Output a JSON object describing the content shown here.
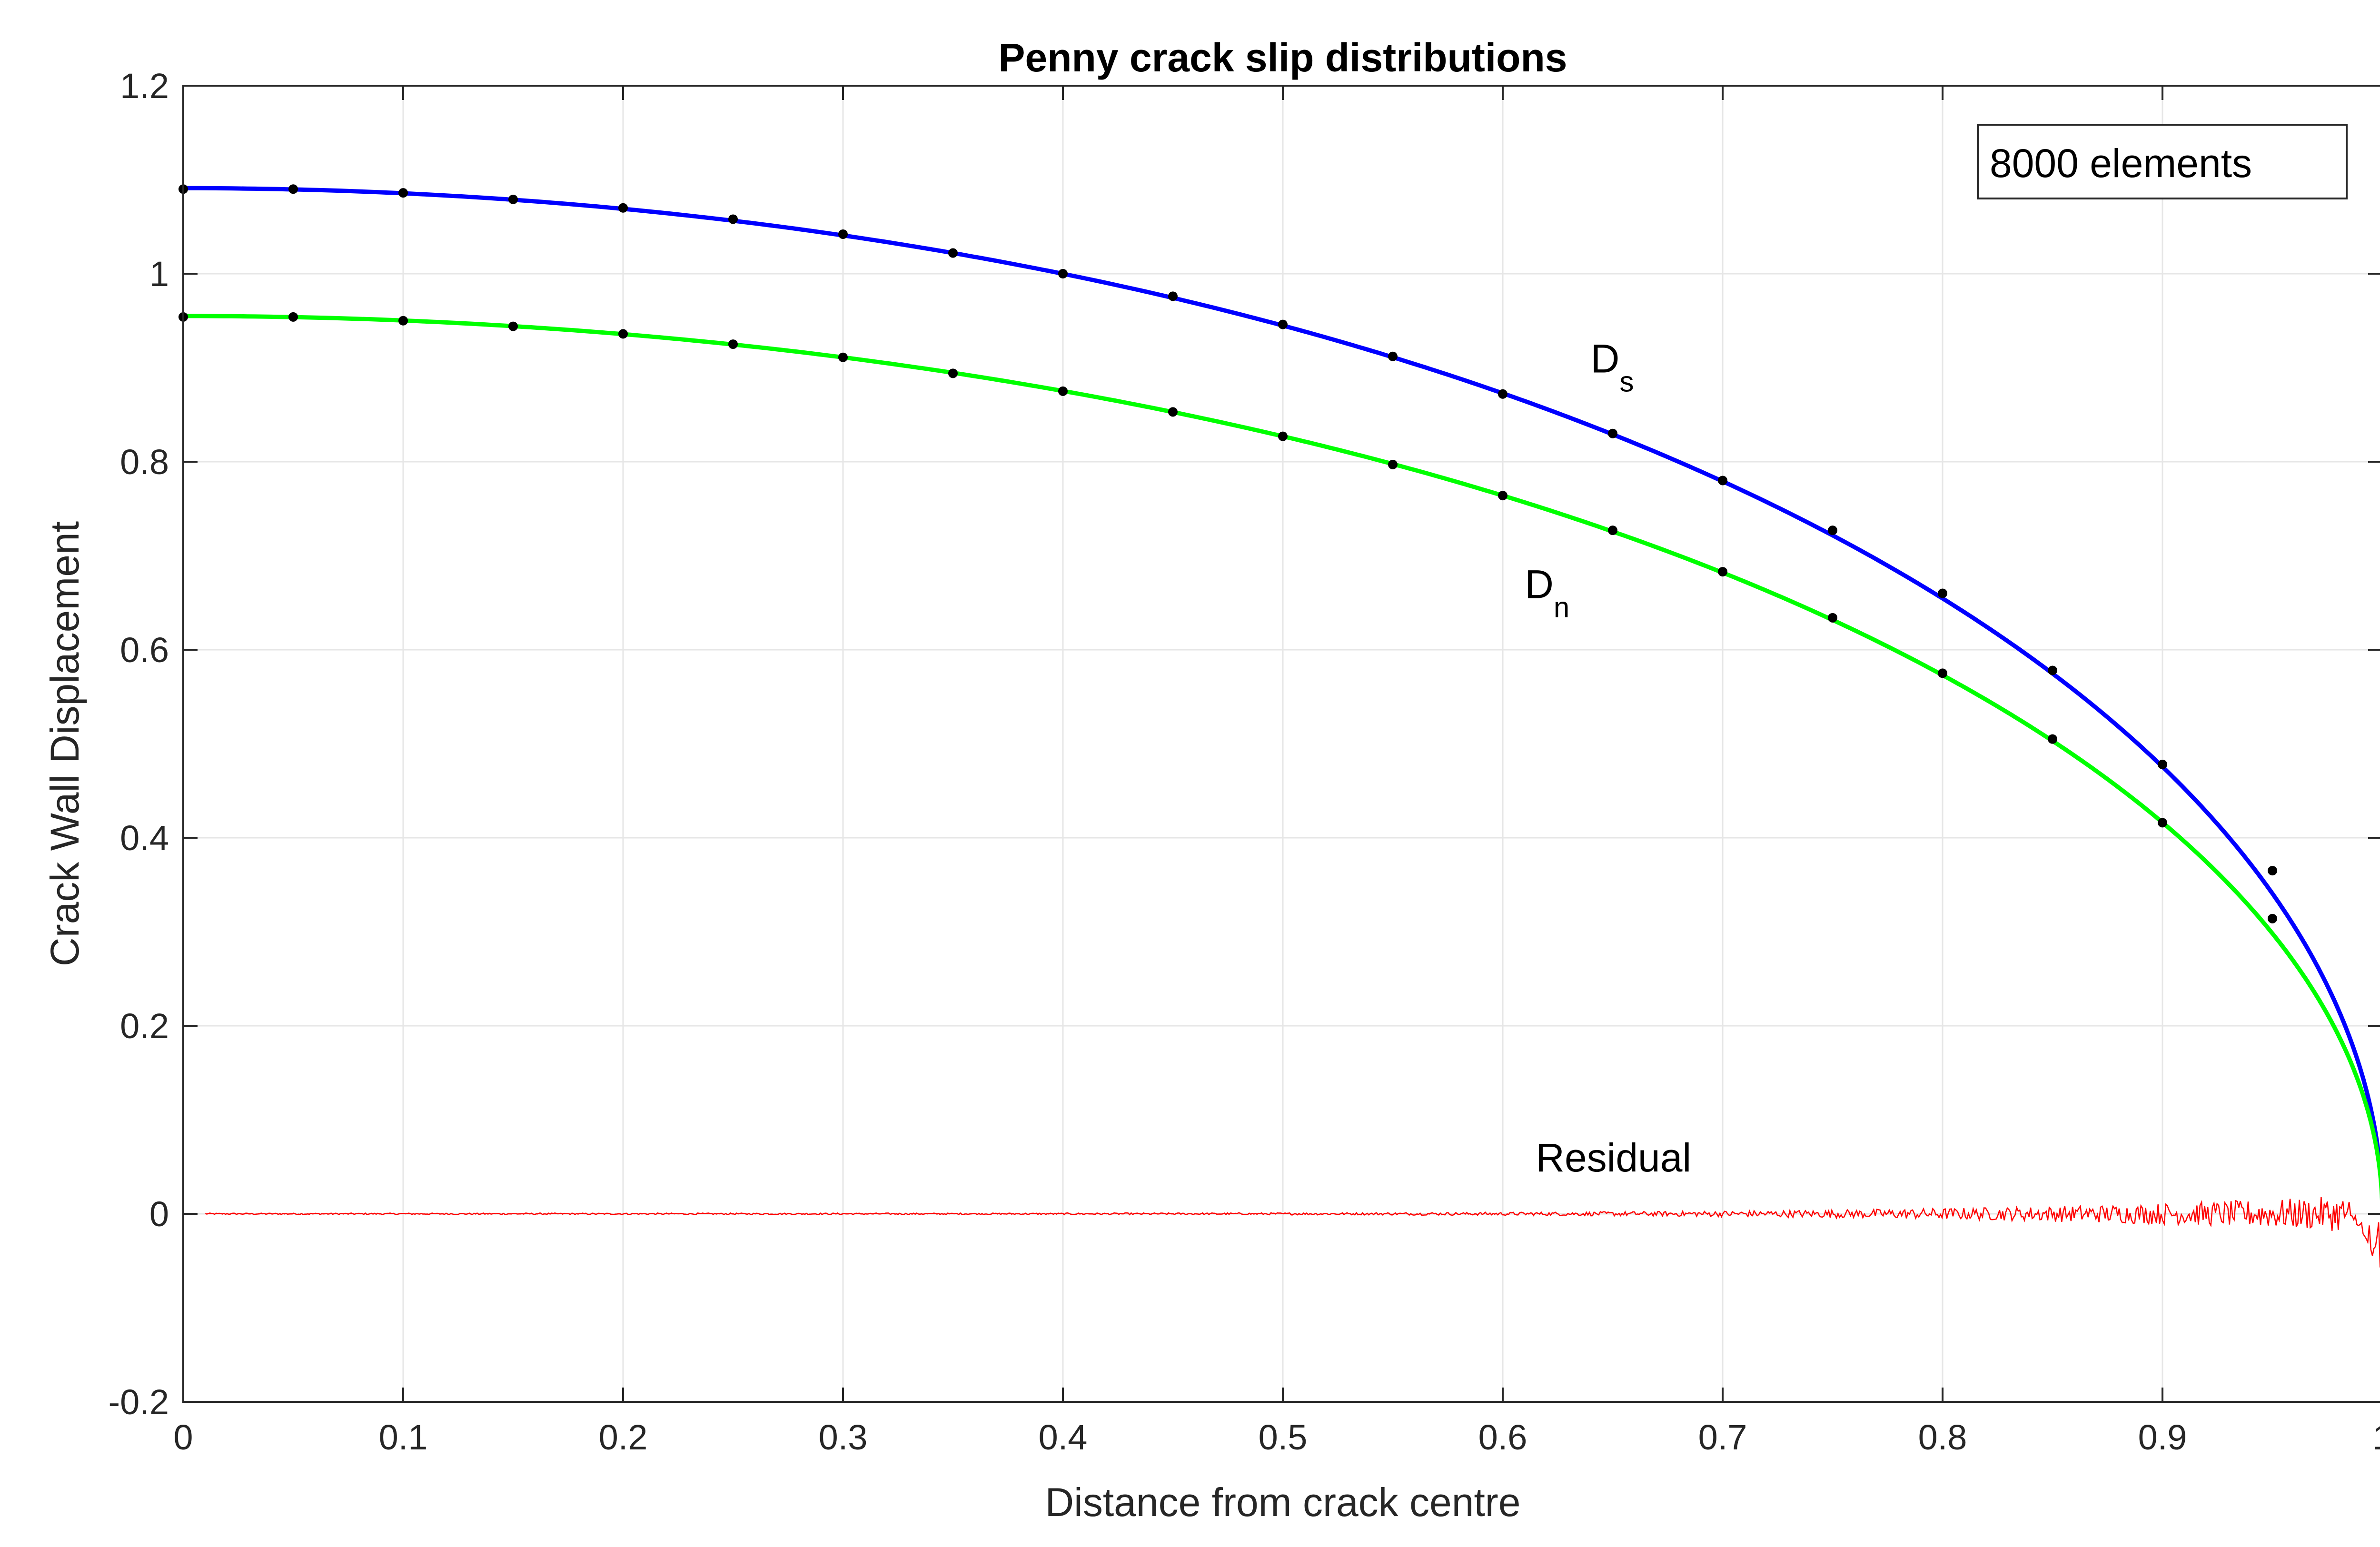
{
  "chart_data": {
    "type": "line",
    "title": "Penny crack slip distributions",
    "xlabel": "Distance from crack centre",
    "ylabel": "Crack Wall Displacement",
    "xlim": [
      0,
      1
    ],
    "ylim": [
      -0.2,
      1.2
    ],
    "grid": true,
    "xticks": [
      0,
      0.1,
      0.2,
      0.3,
      0.4,
      0.5,
      0.6,
      0.7,
      0.8,
      0.9,
      1
    ],
    "xtick_labels": [
      "0",
      "0.1",
      "0.2",
      "0.3",
      "0.4",
      "0.5",
      "0.6",
      "0.7",
      "0.8",
      "0.9",
      "1"
    ],
    "yticks": [
      -0.2,
      0,
      0.2,
      0.4,
      0.6,
      0.8,
      1,
      1.2
    ],
    "ytick_labels": [
      "-0.2",
      "0",
      "0.2",
      "0.4",
      "0.6",
      "0.8",
      "1",
      "1.2"
    ],
    "legend_text": "8000 elements",
    "legend_position": "top-right",
    "series": [
      {
        "name": "Ds",
        "label_main": "D",
        "label_sub": "s",
        "kind": "analytic-line",
        "color": "#0000ff",
        "amplitude": 1.091,
        "label_at": {
          "x": 0.64,
          "y": 0.895
        },
        "points_x": [
          0,
          0.05,
          0.1,
          0.15,
          0.2,
          0.25,
          0.3,
          0.35,
          0.4,
          0.45,
          0.5,
          0.55,
          0.6,
          0.65,
          0.7,
          0.75,
          0.8,
          0.85,
          0.9,
          0.95
        ],
        "points_y": [
          1.09,
          1.09,
          1.086,
          1.079,
          1.07,
          1.058,
          1.042,
          1.022,
          1.0,
          0.976,
          0.946,
          0.912,
          0.872,
          0.83,
          0.78,
          0.727,
          0.66,
          0.578,
          0.478,
          0.365
        ]
      },
      {
        "name": "Dn",
        "label_main": "D",
        "label_sub": "n",
        "kind": "analytic-line",
        "color": "#00ff00",
        "amplitude": 0.955,
        "label_at": {
          "x": 0.61,
          "y": 0.655
        },
        "points_x": [
          0,
          0.05,
          0.1,
          0.15,
          0.2,
          0.25,
          0.3,
          0.35,
          0.4,
          0.45,
          0.5,
          0.55,
          0.6,
          0.65,
          0.7,
          0.75,
          0.8,
          0.85,
          0.9,
          0.95
        ],
        "points_y": [
          0.954,
          0.954,
          0.95,
          0.944,
          0.936,
          0.925,
          0.911,
          0.894,
          0.875,
          0.853,
          0.827,
          0.797,
          0.764,
          0.727,
          0.683,
          0.634,
          0.575,
          0.505,
          0.416,
          0.314
        ]
      },
      {
        "name": "Residual",
        "label_main": "Residual",
        "kind": "noise",
        "color": "#ff0000",
        "baseline": 0,
        "amplitude_edge": 0.02,
        "min_near_edge": -0.06,
        "label_at": {
          "x": 0.615,
          "y": 0.045
        }
      }
    ]
  }
}
